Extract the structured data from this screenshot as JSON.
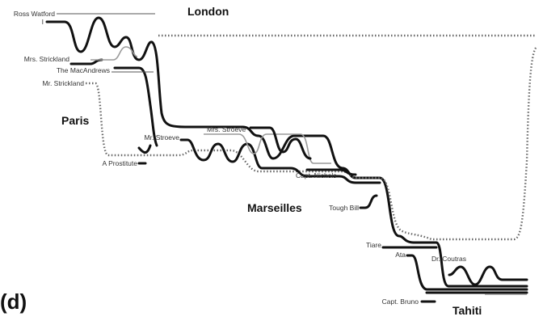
{
  "panel_label": "(d)",
  "places": {
    "london": "London",
    "paris": "Paris",
    "marseilles": "Marseilles",
    "tahiti": "Tahiti"
  },
  "characters": {
    "ross_watford": "Ross Watford",
    "i": "I",
    "mrs_strickland": "Mrs. Strickland",
    "the_macandrews": "The MacAndrews",
    "mr_strickland": "Mr. Strickland",
    "mr_stroeve": "Mr. Stroeve",
    "mrs_stroeve": "Mrs. Stroeve",
    "a_prostitute": "A Prostitute",
    "capt_nichols": "Capt. Nichols",
    "tough_bill": "Tough Bill",
    "tiare": "Tiare",
    "ata": "Ata",
    "dr_coutras": "Dr. Coutras",
    "capt_bruno": "Capt. Bruno"
  },
  "colors": {
    "main_line": "#111111",
    "secondary_line": "#9a9a9a",
    "dotted_line": "#666666"
  }
}
